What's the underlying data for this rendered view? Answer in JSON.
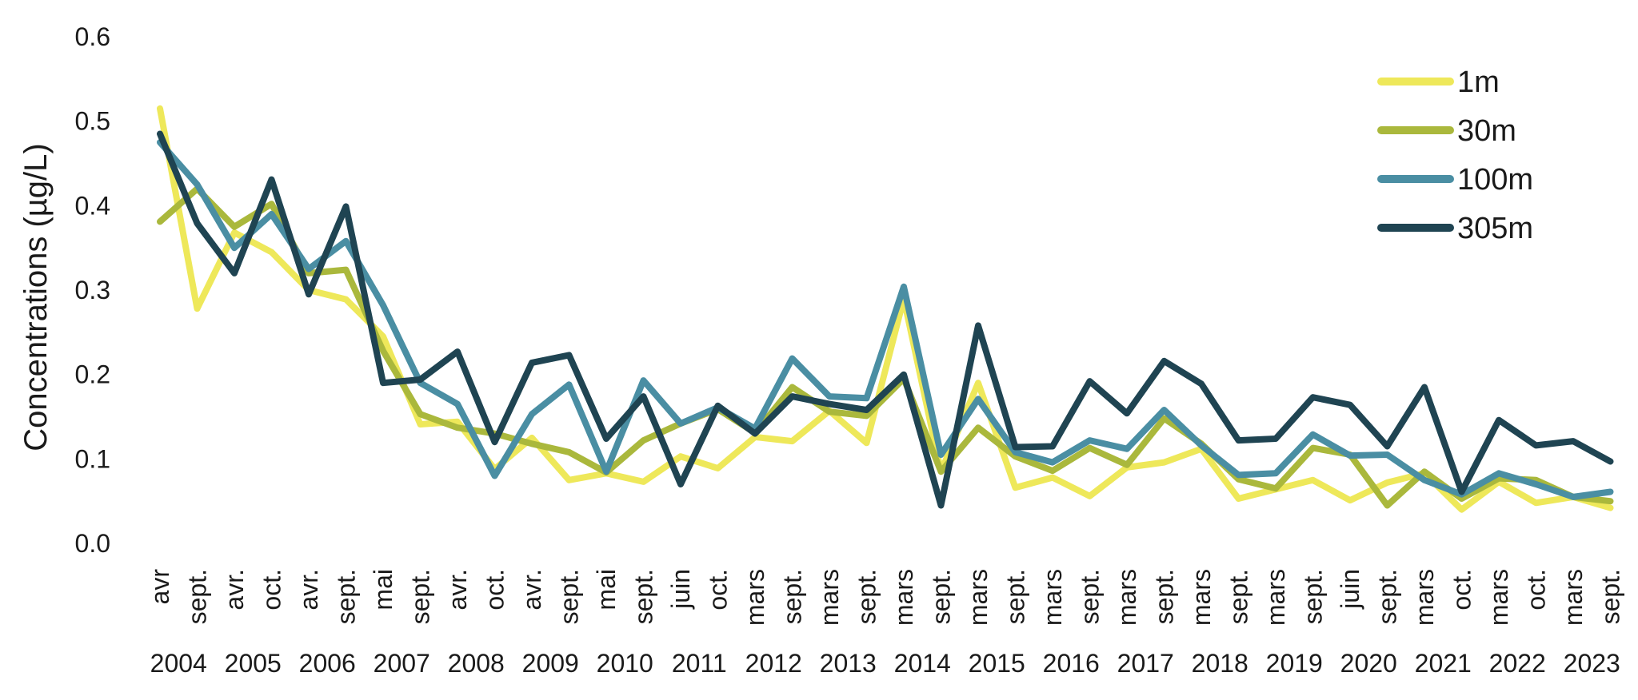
{
  "chart_data": {
    "type": "line",
    "title": "",
    "xlabel": "",
    "ylabel": "Concentrations (µg/L)",
    "ylim": [
      0,
      0.6
    ],
    "yticks": [
      "0.0",
      "0.1",
      "0.2",
      "0.3",
      "0.4",
      "0.5",
      "0.6"
    ],
    "grid": false,
    "legend_position": "top-right",
    "categories": [
      "avr",
      "sept.",
      "avr.",
      "oct.",
      "avr.",
      "sept.",
      "mai",
      "sept.",
      "avr.",
      "oct.",
      "avr.",
      "sept.",
      "mai",
      "sept.",
      "juin",
      "oct.",
      "mars",
      "sept.",
      "mars",
      "sept.",
      "mars",
      "sept.",
      "mars",
      "sept.",
      "mars",
      "sept.",
      "mars",
      "sept.",
      "mars",
      "sept.",
      "mars",
      "sept.",
      "juin",
      "sept.",
      "mars",
      "oct.",
      "mars",
      "oct.",
      "mars",
      "sept."
    ],
    "years": [
      "2004",
      "2005",
      "2006",
      "2007",
      "2008",
      "2009",
      "2010",
      "2011",
      "2012",
      "2013",
      "2014",
      "2015",
      "2016",
      "2017",
      "2018",
      "2019",
      "2020",
      "2021",
      "2022",
      "2023"
    ],
    "series": [
      {
        "name": "1m",
        "color": "#eee85a",
        "values": [
          0.515,
          0.278,
          0.368,
          0.345,
          0.3,
          0.289,
          0.245,
          0.141,
          0.144,
          0.088,
          0.125,
          0.075,
          0.083,
          0.073,
          0.103,
          0.089,
          0.126,
          0.121,
          0.157,
          0.119,
          0.29,
          0.085,
          0.19,
          0.066,
          0.078,
          0.056,
          0.09,
          0.096,
          0.112,
          0.053,
          0.064,
          0.075,
          0.051,
          0.072,
          0.083,
          0.04,
          0.073,
          0.048,
          0.055,
          0.042
        ]
      },
      {
        "name": "30m",
        "color": "#aab83c",
        "values": [
          0.381,
          0.42,
          0.375,
          0.402,
          0.32,
          0.324,
          0.228,
          0.153,
          0.137,
          0.13,
          0.118,
          0.108,
          0.084,
          0.122,
          0.142,
          0.159,
          0.131,
          0.185,
          0.156,
          0.151,
          0.195,
          0.085,
          0.137,
          0.103,
          0.086,
          0.113,
          0.093,
          0.148,
          0.118,
          0.076,
          0.065,
          0.113,
          0.105,
          0.045,
          0.085,
          0.053,
          0.077,
          0.075,
          0.055,
          0.05
        ]
      },
      {
        "name": "100m",
        "color": "#4a8ea3",
        "values": [
          0.475,
          0.425,
          0.35,
          0.39,
          0.325,
          0.358,
          0.282,
          0.19,
          0.165,
          0.08,
          0.153,
          0.188,
          0.085,
          0.193,
          0.142,
          0.161,
          0.136,
          0.219,
          0.174,
          0.172,
          0.304,
          0.105,
          0.171,
          0.108,
          0.096,
          0.122,
          0.112,
          0.158,
          0.116,
          0.081,
          0.083,
          0.129,
          0.104,
          0.105,
          0.075,
          0.058,
          0.083,
          0.07,
          0.055,
          0.061
        ]
      },
      {
        "name": "305m",
        "color": "#1f4452",
        "values": [
          0.485,
          0.379,
          0.32,
          0.431,
          0.295,
          0.399,
          0.19,
          0.194,
          0.227,
          0.12,
          0.214,
          0.223,
          0.124,
          0.174,
          0.07,
          0.163,
          0.13,
          0.174,
          0.165,
          0.158,
          0.2,
          0.045,
          0.258,
          0.114,
          0.115,
          0.192,
          0.154,
          0.216,
          0.189,
          0.122,
          0.124,
          0.173,
          0.164,
          0.115,
          0.185,
          0.061,
          0.146,
          0.116,
          0.121,
          0.097
        ]
      }
    ]
  }
}
